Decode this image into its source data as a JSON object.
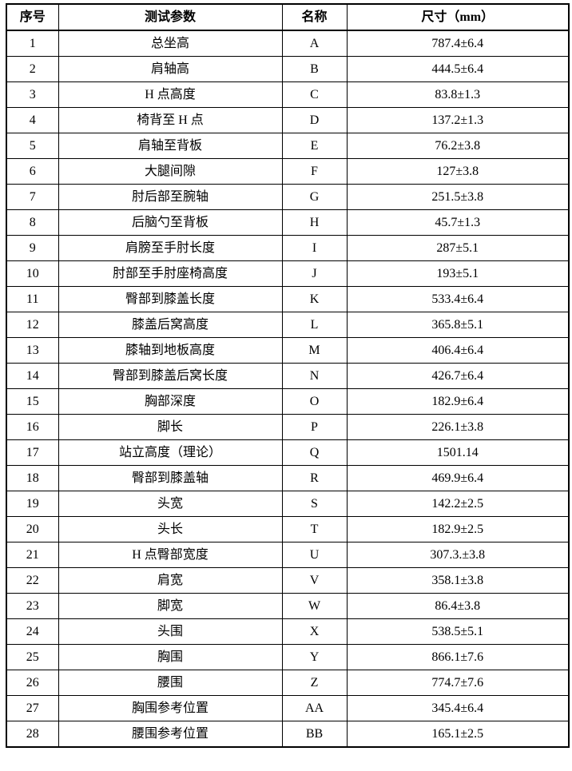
{
  "table": {
    "headers": {
      "no": "序号",
      "param": "测试参数",
      "name": "名称",
      "size": "尺寸（mm）"
    },
    "rows": [
      {
        "no": "1",
        "param": "总坐高",
        "name": "A",
        "size": "787.4±6.4"
      },
      {
        "no": "2",
        "param": "肩轴高",
        "name": "B",
        "size": "444.5±6.4"
      },
      {
        "no": "3",
        "param": "H 点高度",
        "name": "C",
        "size": "83.8±1.3"
      },
      {
        "no": "4",
        "param": "椅背至 H 点",
        "name": "D",
        "size": "137.2±1.3"
      },
      {
        "no": "5",
        "param": "肩轴至背板",
        "name": "E",
        "size": "76.2±3.8"
      },
      {
        "no": "6",
        "param": "大腿间隙",
        "name": "F",
        "size": "127±3.8"
      },
      {
        "no": "7",
        "param": "肘后部至腕轴",
        "name": "G",
        "size": "251.5±3.8"
      },
      {
        "no": "8",
        "param": "后脑勺至背板",
        "name": "H",
        "size": "45.7±1.3"
      },
      {
        "no": "9",
        "param": "肩膀至手肘长度",
        "name": "I",
        "size": "287±5.1"
      },
      {
        "no": "10",
        "param": "肘部至手肘座椅高度",
        "name": "J",
        "size": "193±5.1"
      },
      {
        "no": "11",
        "param": "臀部到膝盖长度",
        "name": "K",
        "size": "533.4±6.4"
      },
      {
        "no": "12",
        "param": "膝盖后窝高度",
        "name": "L",
        "size": "365.8±5.1"
      },
      {
        "no": "13",
        "param": "膝轴到地板高度",
        "name": "M",
        "size": "406.4±6.4"
      },
      {
        "no": "14",
        "param": "臀部到膝盖后窝长度",
        "name": "N",
        "size": "426.7±6.4"
      },
      {
        "no": "15",
        "param": "胸部深度",
        "name": "O",
        "size": "182.9±6.4"
      },
      {
        "no": "16",
        "param": "脚长",
        "name": "P",
        "size": "226.1±3.8"
      },
      {
        "no": "17",
        "param": "站立高度（理论）",
        "name": "Q",
        "size": "1501.14"
      },
      {
        "no": "18",
        "param": "臀部到膝盖轴",
        "name": "R",
        "size": "469.9±6.4"
      },
      {
        "no": "19",
        "param": "头宽",
        "name": "S",
        "size": "142.2±2.5"
      },
      {
        "no": "20",
        "param": "头长",
        "name": "T",
        "size": "182.9±2.5"
      },
      {
        "no": "21",
        "param": "H 点臀部宽度",
        "name": "U",
        "size": "307.3.±3.8"
      },
      {
        "no": "22",
        "param": "肩宽",
        "name": "V",
        "size": "358.1±3.8"
      },
      {
        "no": "23",
        "param": "脚宽",
        "name": "W",
        "size": "86.4±3.8"
      },
      {
        "no": "24",
        "param": "头围",
        "name": "X",
        "size": "538.5±5.1"
      },
      {
        "no": "25",
        "param": "胸围",
        "name": "Y",
        "size": "866.1±7.6"
      },
      {
        "no": "26",
        "param": "腰围",
        "name": "Z",
        "size": "774.7±7.6"
      },
      {
        "no": "27",
        "param": "胸围参考位置",
        "name": "AA",
        "size": "345.4±6.4"
      },
      {
        "no": "28",
        "param": "腰围参考位置",
        "name": "BB",
        "size": "165.1±2.5"
      }
    ],
    "border_color": "#000000",
    "text_color": "#000000"
  }
}
